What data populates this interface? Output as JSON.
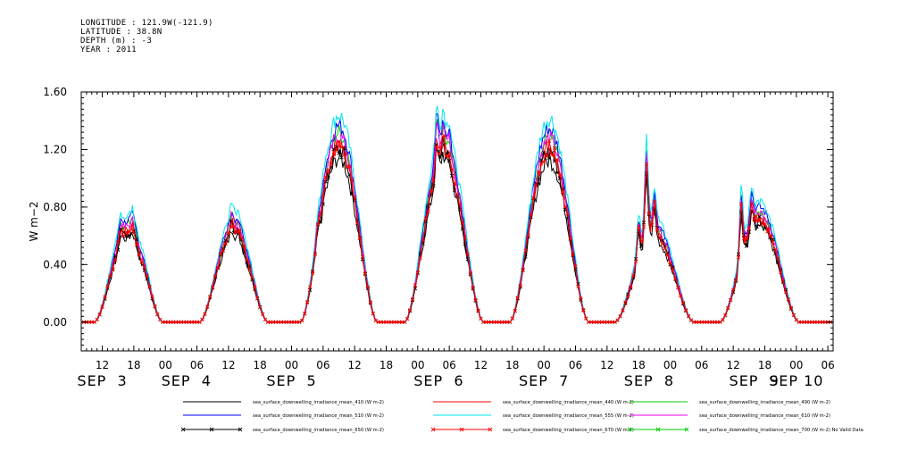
{
  "header": {
    "lines": [
      "LONGITUDE : 121.9W(-121.9)",
      "LATITUDE : 38.8N",
      "DEPTH (m) : -3",
      "YEAR : 2011"
    ]
  },
  "chart_data": {
    "type": "line",
    "ylabel": "W m−2",
    "xlabel": "",
    "ylim": [
      -0.2,
      1.6
    ],
    "yticks": [
      0.0,
      0.4,
      0.8,
      1.2,
      1.6
    ],
    "ytick_labels": [
      "0.00",
      "0.40",
      "0.80",
      "1.20",
      "1.60"
    ],
    "xlim_hours": [
      -16,
      127
    ],
    "hour_ticks": [
      {
        "h": -12,
        "label": "12"
      },
      {
        "h": -6,
        "label": "18"
      },
      {
        "h": 0,
        "label": "00"
      },
      {
        "h": 6,
        "label": "06"
      },
      {
        "h": 12,
        "label": "12"
      },
      {
        "h": 18,
        "label": "18"
      },
      {
        "h": 24,
        "label": "00"
      },
      {
        "h": 30,
        "label": "06"
      },
      {
        "h": 36,
        "label": "12"
      },
      {
        "h": 42,
        "label": "18"
      },
      {
        "h": 48,
        "label": "00"
      },
      {
        "h": 54,
        "label": "06"
      },
      {
        "h": 60,
        "label": "12"
      },
      {
        "h": 66,
        "label": "18"
      },
      {
        "h": 72,
        "label": "00"
      },
      {
        "h": 78,
        "label": "06"
      },
      {
        "h": 84,
        "label": "12"
      },
      {
        "h": 90,
        "label": "18"
      },
      {
        "h": 96,
        "label": "00"
      },
      {
        "h": 102,
        "label": "06"
      },
      {
        "h": 108,
        "label": "12"
      },
      {
        "h": 114,
        "label": "18"
      },
      {
        "h": 120,
        "label": "00"
      },
      {
        "h": 126,
        "label": "06"
      }
    ],
    "day_labels": [
      {
        "h": -12,
        "label": "SEP  3"
      },
      {
        "h": 4,
        "label": "SEP  4"
      },
      {
        "h": 24,
        "label": "SEP  5"
      },
      {
        "h": 52,
        "label": "SEP  6"
      },
      {
        "h": 72,
        "label": "SEP  7"
      },
      {
        "h": 92,
        "label": "SEP  8"
      },
      {
        "h": 112,
        "label": "SEP  9"
      },
      {
        "h": 120,
        "label": "SEP 10"
      }
    ],
    "days": [
      {
        "center": -7,
        "half": 6.5,
        "peak": 0.62,
        "spikes": [
          [
            -8.5,
            0.08
          ],
          [
            -6.2,
            0.05
          ],
          [
            -4.8,
            -0.03
          ]
        ]
      },
      {
        "center": 13,
        "half": 6.5,
        "peak": 0.62,
        "spikes": [
          [
            12.6,
            0.07
          ],
          [
            14.0,
            0.03
          ],
          [
            15.5,
            -0.02
          ]
        ]
      },
      {
        "center": 33,
        "half": 7.3,
        "peak": 1.2,
        "spikes": [
          [
            29.0,
            0.08
          ],
          [
            30.3,
            0.05
          ]
        ]
      },
      {
        "center": 53,
        "half": 7.5,
        "peak": 1.12,
        "spikes": [
          [
            51.6,
            0.2
          ],
          [
            52.8,
            0.12
          ],
          [
            54.0,
            0.1
          ]
        ]
      },
      {
        "center": 73,
        "half": 7.5,
        "peak": 1.18,
        "spikes": []
      },
      {
        "center": 93,
        "half": 7.5,
        "peak": 0.6,
        "spikes": [
          [
            90.0,
            0.22
          ],
          [
            91.5,
            0.5
          ],
          [
            93.0,
            0.2
          ]
        ]
      },
      {
        "center": 113,
        "half": 7.5,
        "peak": 0.7,
        "spikes": [
          [
            109.5,
            0.35
          ],
          [
            111.5,
            0.15
          ]
        ]
      }
    ],
    "series": [
      {
        "name": "sea_surface_downwelling_irradiance_mean_410 (W m-2)",
        "factor": 0.95,
        "color": "#000000",
        "marker": false
      },
      {
        "name": "sea_surface_downwelling_irradiance_mean_440 (W m-2)",
        "factor": 1.04,
        "color": "#ff0000",
        "marker": false
      },
      {
        "name": "sea_surface_downwelling_irradiance_mean_490 (W m-2)",
        "factor": 1.1,
        "color": "#00cc00",
        "marker": false
      },
      {
        "name": "sea_surface_downwelling_irradiance_mean_510 (W m-2)",
        "factor": 1.14,
        "color": "#0000ff",
        "marker": false
      },
      {
        "name": "sea_surface_downwelling_irradiance_mean_555 (W m-2)",
        "factor": 1.2,
        "color": "#00e5ee",
        "marker": false
      },
      {
        "name": "sea_surface_downwelling_irradiance_mean_610 (W m-2)",
        "factor": 1.08,
        "color": "#ee00ee",
        "marker": false
      },
      {
        "name": "sea_surface_downwelling_irradiance_mean_650 (W m-2)",
        "factor": 1.0,
        "color": "#000000",
        "marker": true
      },
      {
        "name": "sea_surface_downwelling_irradiance_mean_670 (W m-2)",
        "factor": 1.02,
        "color": "#ff0000",
        "marker": true
      },
      {
        "name": "sea_surface_downwelling_irradiance_mean_700 (W m-2) No Valid Data",
        "factor": 0,
        "color": "#00cc00",
        "marker": true,
        "no_data": true
      }
    ],
    "grid": false,
    "legend": "bottom"
  }
}
